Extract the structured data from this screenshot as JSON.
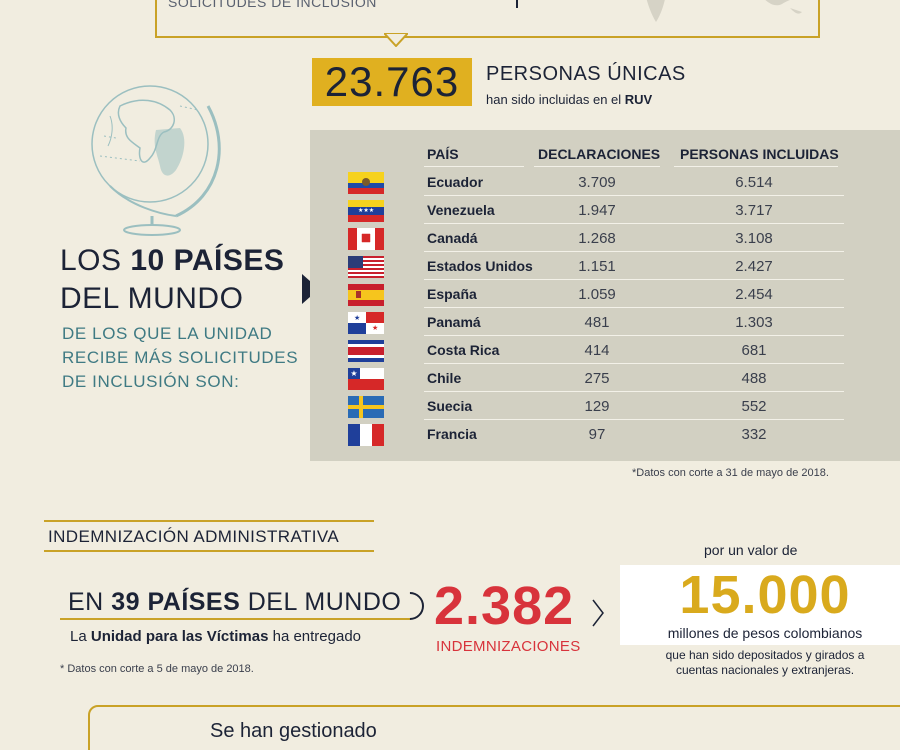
{
  "top": {
    "cut_text": "SOLICITUDES DE INCLUSIÓN"
  },
  "colors": {
    "background": "#f1ede0",
    "gold": "#c9a227",
    "navy": "#1c2336",
    "teal": "#3f7a83",
    "red": "#d8333b",
    "table_panel": "#d2d0c2"
  },
  "personas": {
    "count": "23.763",
    "title": "PERSONAS ÚNICAS",
    "subtitle_pre": "han sido incluidas en el ",
    "subtitle_bold": "RUV"
  },
  "paises": {
    "title_pre": "LOS ",
    "title_bold": "10 PAÍSES",
    "title_line2": "DEL MUNDO",
    "sub_line1": "DE LOS QUE LA UNIDAD",
    "sub_line2": "RECIBE MÁS SOLICITUDES",
    "sub_line3": "DE INCLUSIÓN SON:"
  },
  "table": {
    "headers": [
      "PAÍS",
      "DECLARACIONES",
      "PERSONAS INCLUIDAS"
    ],
    "rows": [
      {
        "pais": "Ecuador",
        "declaraciones": "3.709",
        "personas": "6.514",
        "flag": "ecuador-flag"
      },
      {
        "pais": "Venezuela",
        "declaraciones": "1.947",
        "personas": "3.717",
        "flag": "venezuela-flag"
      },
      {
        "pais": "Canadá",
        "declaraciones": "1.268",
        "personas": "3.108",
        "flag": "canada-flag"
      },
      {
        "pais": "Estados Unidos",
        "declaraciones": "1.151",
        "personas": "2.427",
        "flag": "usa-flag"
      },
      {
        "pais": "España",
        "declaraciones": "1.059",
        "personas": "2.454",
        "flag": "spain-flag"
      },
      {
        "pais": "Panamá",
        "declaraciones": "481",
        "personas": "1.303",
        "flag": "panama-flag"
      },
      {
        "pais": "Costa Rica",
        "declaraciones": "414",
        "personas": "681",
        "flag": "costa-rica-flag"
      },
      {
        "pais": "Chile",
        "declaraciones": "275",
        "personas": "488",
        "flag": "chile-flag"
      },
      {
        "pais": "Suecia",
        "declaraciones": "129",
        "personas": "552",
        "flag": "sweden-flag"
      },
      {
        "pais": "Francia",
        "declaraciones": "97",
        "personas": "332",
        "flag": "france-flag"
      }
    ],
    "note": "*Datos con corte a 31 de mayo de 2018."
  },
  "indemnizacion": {
    "title": "INDEMNIZACIÓN ADMINISTRATIVA",
    "en_pre": "EN ",
    "en_bold": "39 PAÍSES",
    "en_post": " DEL MUNDO",
    "unidad_pre": "La ",
    "unidad_bold": "Unidad para las Víctimas",
    "unidad_post": " ha entregado",
    "note": "* Datos con corte a 5 de mayo de 2018.",
    "count": "2.382",
    "count_label": "INDEMNIZACIONES",
    "por_valor": "por un valor de",
    "valor": "15.000",
    "millones": "millones de pesos colombianos",
    "depositados_line1": "que han sido depositados y girados a",
    "depositados_line2": "cuentas nacionales y extranjeras."
  },
  "bottom": {
    "gestionado": "Se han gestionado"
  }
}
